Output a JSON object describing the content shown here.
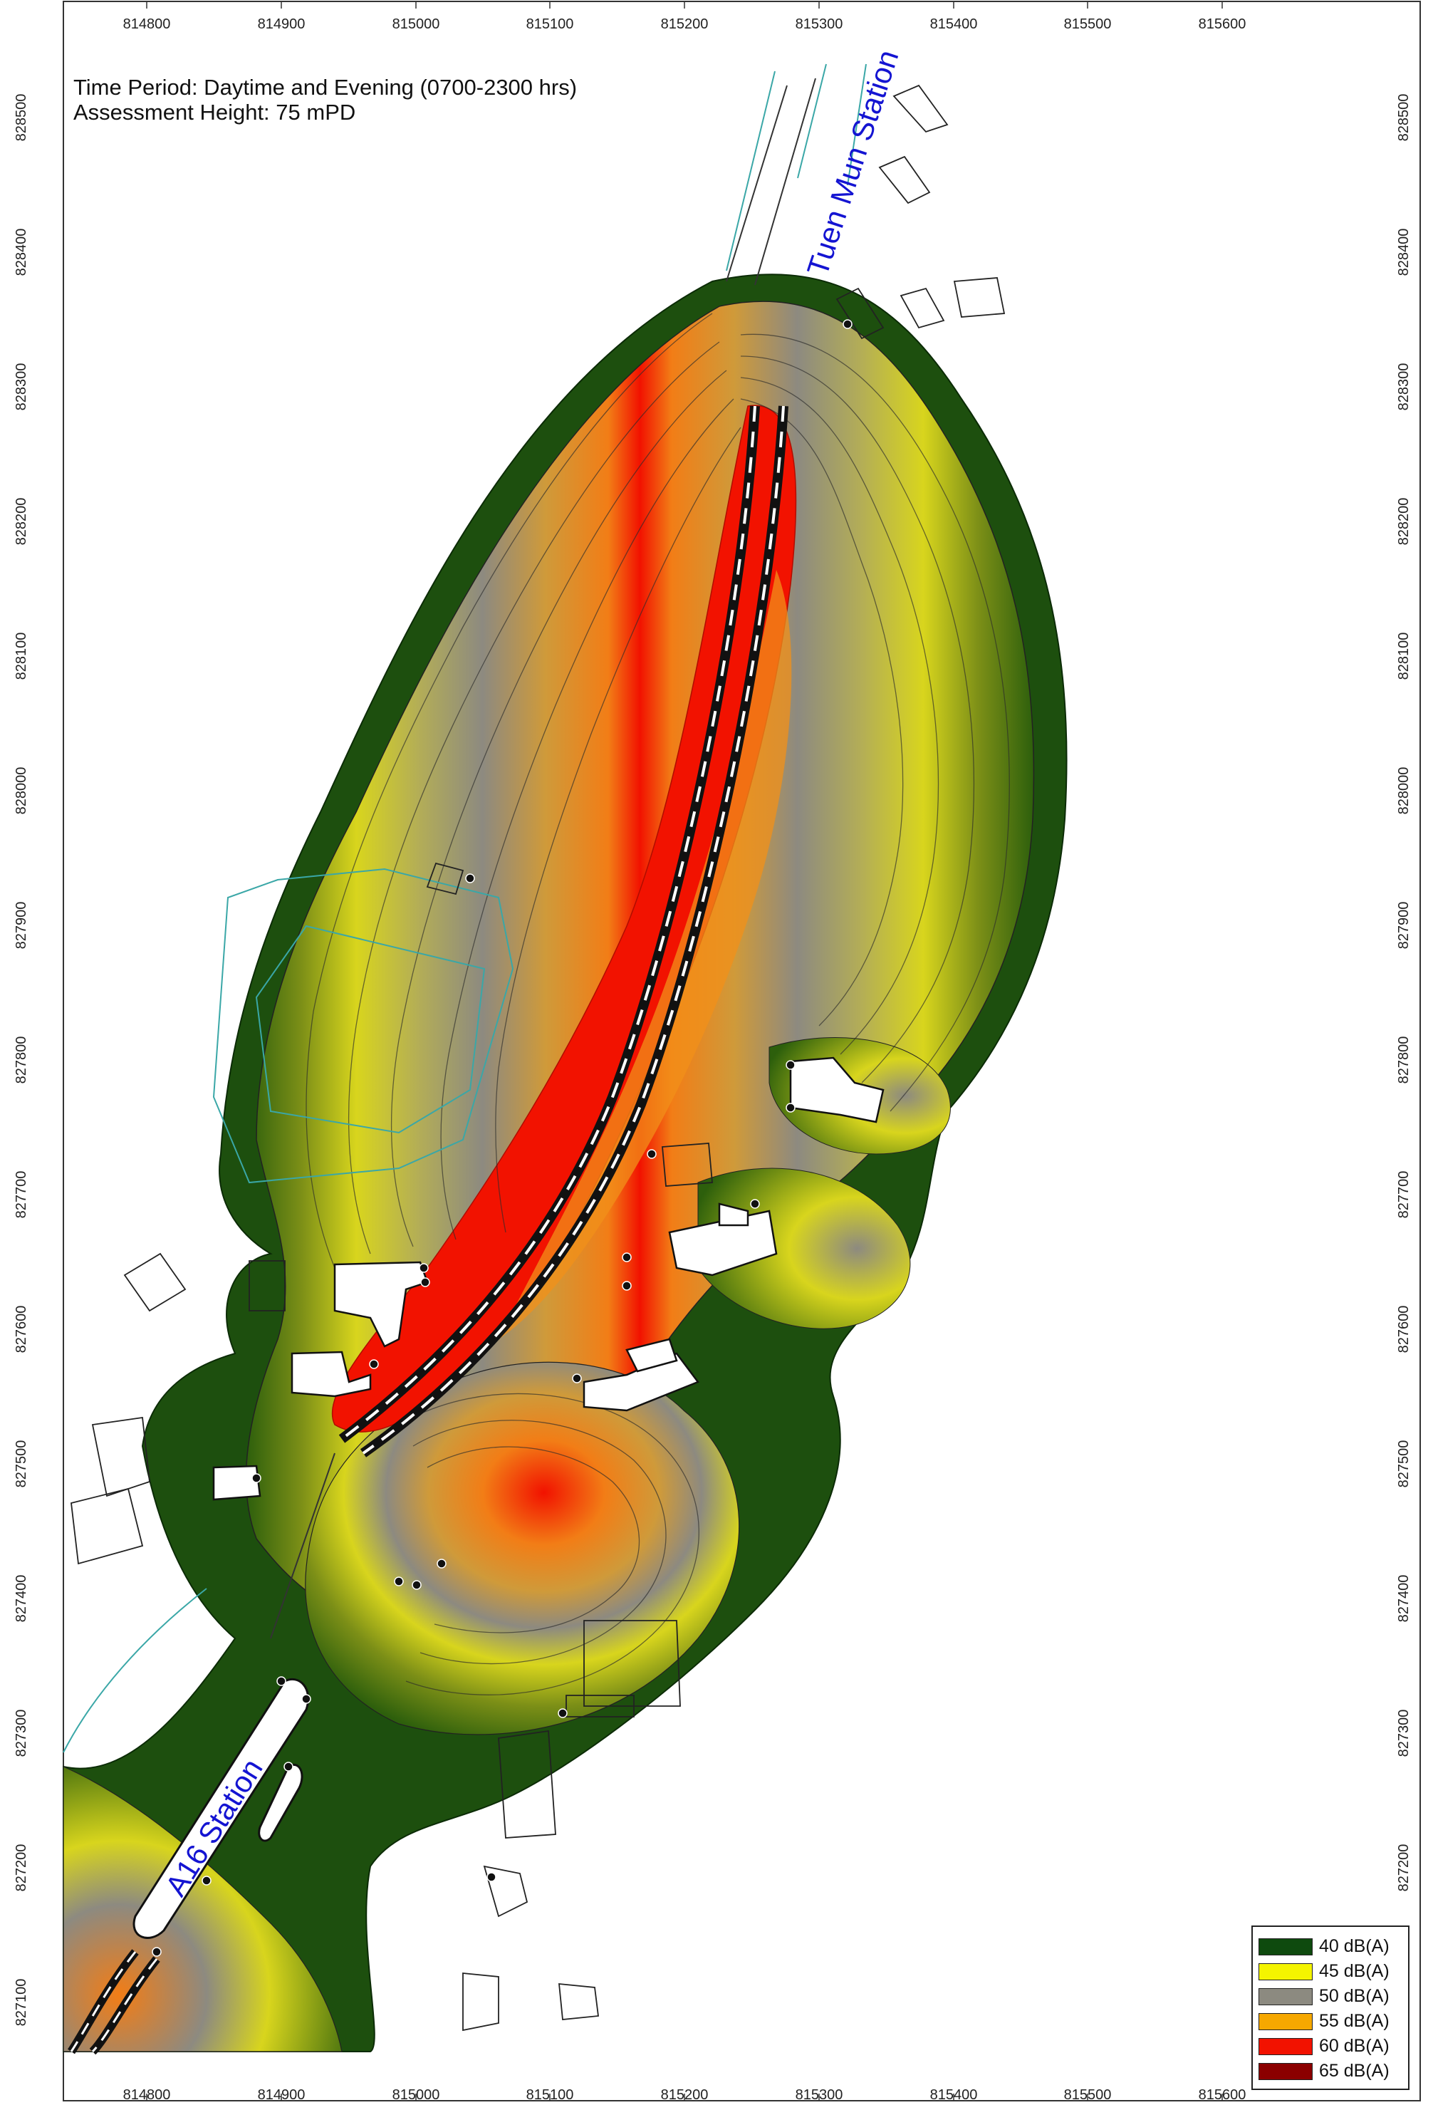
{
  "map": {
    "title_line1": "Time Period: Daytime and Evening (0700-2300 hrs)",
    "title_line2": "Assessment Height: 75 mPD",
    "x_ticks": [
      "814800",
      "814900",
      "815000",
      "815100",
      "815200",
      "815300",
      "815400",
      "815500",
      "815600"
    ],
    "y_ticks": [
      "828500",
      "828400",
      "828300",
      "828200",
      "828100",
      "828000",
      "827900",
      "827800",
      "827700",
      "827600",
      "827500",
      "827400",
      "827300",
      "827200",
      "827100"
    ],
    "stations": {
      "north": "Tuen Mun Station",
      "south": "A16 Station"
    }
  },
  "legend": {
    "items": [
      {
        "label": "40 dB(A)",
        "color": "#0e4a0e"
      },
      {
        "label": "45 dB(A)",
        "color": "#f4f400"
      },
      {
        "label": "50 dB(A)",
        "color": "#8c8a80"
      },
      {
        "label": "55 dB(A)",
        "color": "#f6a800"
      },
      {
        "label": "60 dB(A)",
        "color": "#f21200"
      },
      {
        "label": "65 dB(A)",
        "color": "#8b0000"
      }
    ]
  }
}
